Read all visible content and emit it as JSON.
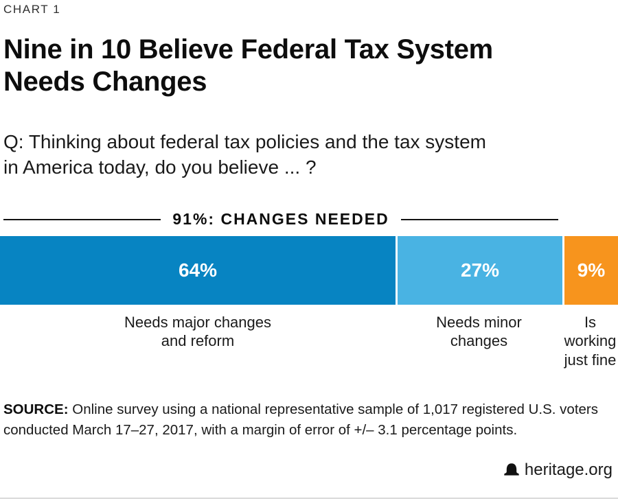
{
  "header": {
    "kicker": "CHART 1",
    "title_line1": "Nine in 10 Believe Federal Tax System",
    "title_line2": "Needs Changes",
    "question_line1": "Q: Thinking about federal tax policies and the tax system",
    "question_line2": "in America today, do you believe ... ?"
  },
  "chart_data": {
    "type": "bar",
    "subtype": "stacked-horizontal-100-percent",
    "title": "Nine in 10 Believe Federal Tax System Needs Changes",
    "question": "Q: Thinking about federal tax policies and the tax system in America today, do you believe ... ?",
    "units": "%",
    "xlim": [
      0,
      100
    ],
    "grid": false,
    "legend_position": "labels-below-bar",
    "bracket_label": "91%: CHANGES NEEDED",
    "bracket_span_pct": 91,
    "segments": [
      {
        "label": "Needs major changes and reform",
        "label_lines": [
          "Needs major changes",
          "and reform"
        ],
        "value": 64,
        "value_label": "64%",
        "color": "#0784c2"
      },
      {
        "label": "Needs minor changes",
        "label_lines": [
          "Needs minor",
          "changes"
        ],
        "value": 27,
        "value_label": "27%",
        "color": "#49b3e3"
      },
      {
        "label": "Is working just fine",
        "label_lines": [
          "Is",
          "working",
          "just fine"
        ],
        "value": 9,
        "value_label": "9%",
        "color": "#f7941d"
      }
    ]
  },
  "footer": {
    "source_label": "SOURCE:",
    "source_text": " Online survey using a national representative sample of 1,017 registered U.S. voters conducted March 17–27, 2017, with a margin of error of +/– 3.1 percentage points.",
    "brand": "heritage.org",
    "brand_icon": "liberty-bell-icon"
  },
  "colors": {
    "segment_dark_blue": "#0784c2",
    "segment_light_blue": "#49b3e3",
    "segment_orange": "#f7941d",
    "bracket_line": "#121212",
    "bottom_rule": "#d9d9d9",
    "text": "#1a1a1a"
  }
}
